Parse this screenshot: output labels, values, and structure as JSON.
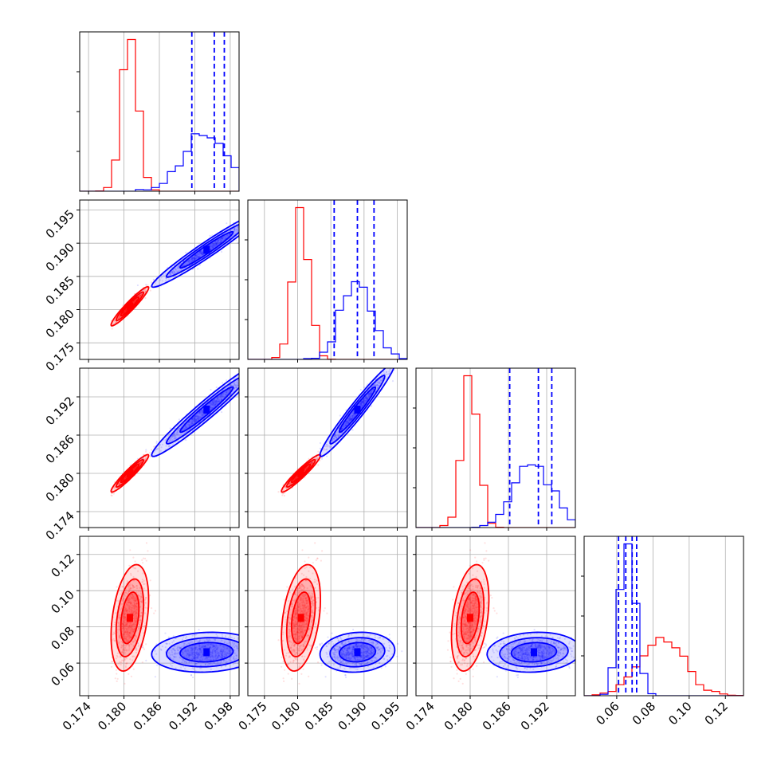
{
  "chart_data": {
    "type": "corner",
    "n_params": 4,
    "grid": true,
    "colors": {
      "red": "#ff0000",
      "blue": "#0000ff"
    },
    "ranges": [
      [
        0.1725,
        0.1995
      ],
      [
        0.1725,
        0.1965
      ],
      [
        0.1715,
        0.1965
      ],
      [
        0.042,
        0.13
      ]
    ],
    "ticks": [
      [
        0.174,
        0.18,
        0.186,
        0.192,
        0.198
      ],
      [
        0.175,
        0.18,
        0.185,
        0.19,
        0.195
      ],
      [
        0.174,
        0.18,
        0.186,
        0.192
      ],
      [
        0.06,
        0.08,
        0.1,
        0.12
      ]
    ],
    "tick_labels": [
      [
        "0.174",
        "0.180",
        "0.186",
        "0.192",
        "0.198"
      ],
      [
        "0.175",
        "0.180",
        "0.185",
        "0.190",
        "0.195"
      ],
      [
        "0.174",
        "0.180",
        "0.186",
        "0.192"
      ],
      [
        "0.06",
        "0.08",
        "0.10",
        "0.12"
      ]
    ],
    "quantiles_blue": [
      [
        0.1915,
        0.1953,
        0.197
      ],
      [
        0.1855,
        0.189,
        0.1915
      ],
      [
        0.1862,
        0.1907,
        0.1928
      ],
      [
        0.061,
        0.065,
        0.0685,
        0.071
      ]
    ],
    "series": [
      {
        "color": "#ff0000",
        "mean": [
          0.181,
          0.1805,
          0.18,
          0.085
        ],
        "std": [
          0.0013,
          0.0012,
          0.0012,
          0.012
        ],
        "corr": [
          [
            1,
            0.95,
            0.95,
            0.35
          ],
          [
            0.95,
            1,
            0.95,
            0.35
          ],
          [
            0.95,
            0.95,
            1,
            0.35
          ],
          [
            0.35,
            0.35,
            0.35,
            1
          ]
        ]
      },
      {
        "color": "#0000ff",
        "mean": [
          0.194,
          0.189,
          0.19,
          0.066
        ],
        "std": [
          0.0038,
          0.0023,
          0.003,
          0.0045
        ],
        "corr": [
          [
            1,
            0.97,
            0.97,
            0.1
          ],
          [
            0.97,
            1,
            0.97,
            0.1
          ],
          [
            0.97,
            0.97,
            1,
            0.1
          ],
          [
            0.1,
            0.1,
            0.1,
            1
          ]
        ]
      }
    ]
  }
}
